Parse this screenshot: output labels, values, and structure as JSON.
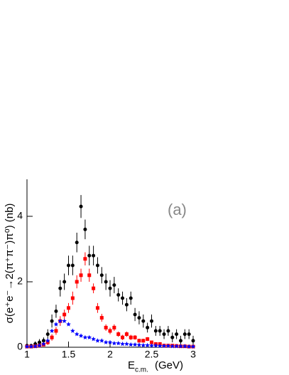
{
  "chart_data": {
    "type": "errorbar-scatter",
    "y_label": "σ(e⁺e⁻→2(π⁺π⁻)π⁰) (nb)",
    "x_label": "E",
    "x_label_sub": "c.m.",
    "x_label_unit": "(GeV)",
    "annotation": "(a)",
    "x": [
      1.0,
      1.05,
      1.1,
      1.15,
      1.2,
      1.25,
      1.3,
      1.35,
      1.4,
      1.45,
      1.5,
      1.55,
      1.6,
      1.65,
      1.7,
      1.75,
      1.8,
      1.85,
      1.9,
      1.95,
      2.0,
      2.05,
      2.1,
      2.15,
      2.2,
      2.25,
      2.3,
      2.35,
      2.4,
      2.45,
      2.5,
      2.55,
      2.6,
      2.65,
      2.7,
      2.75,
      2.8,
      2.85,
      2.9,
      2.95,
      3.0
    ],
    "series": [
      {
        "color": "#000000",
        "marker": "circle",
        "values": [
          0.05,
          0.05,
          0.1,
          0.15,
          0.2,
          0.4,
          0.8,
          1.1,
          1.8,
          2.0,
          2.5,
          2.5,
          3.2,
          4.3,
          3.6,
          2.8,
          2.8,
          2.5,
          2.2,
          2.0,
          1.8,
          1.9,
          1.6,
          1.5,
          1.3,
          1.5,
          1.0,
          0.9,
          0.8,
          0.6,
          0.8,
          0.5,
          0.5,
          0.4,
          0.5,
          0.3,
          0.4,
          0.2,
          0.4,
          0.4,
          0.2
        ],
        "errors": [
          0.05,
          0.05,
          0.08,
          0.1,
          0.1,
          0.15,
          0.2,
          0.2,
          0.25,
          0.25,
          0.3,
          0.3,
          0.3,
          0.35,
          0.3,
          0.3,
          0.3,
          0.25,
          0.25,
          0.25,
          0.25,
          0.25,
          0.2,
          0.2,
          0.2,
          0.2,
          0.2,
          0.2,
          0.2,
          0.15,
          0.2,
          0.15,
          0.15,
          0.15,
          0.15,
          0.15,
          0.15,
          0.15,
          0.15,
          0.15,
          0.15
        ]
      },
      {
        "color": "#ff0000",
        "marker": "square",
        "values": [
          0.02,
          0.02,
          0.03,
          0.05,
          0.08,
          0.15,
          0.3,
          0.5,
          0.8,
          1.0,
          1.2,
          1.5,
          2.0,
          2.2,
          2.7,
          2.2,
          1.8,
          1.2,
          0.9,
          0.6,
          0.5,
          0.6,
          0.4,
          0.3,
          0.4,
          0.3,
          0.3,
          0.2,
          0.2,
          0.25,
          0.15,
          0.1,
          0.1,
          0.05,
          0.05,
          0.05,
          0.04,
          0.03,
          0.03,
          0.02,
          0.02
        ],
        "errors": [
          0.02,
          0.02,
          0.03,
          0.04,
          0.05,
          0.08,
          0.1,
          0.12,
          0.15,
          0.15,
          0.15,
          0.2,
          0.2,
          0.2,
          0.2,
          0.2,
          0.15,
          0.15,
          0.12,
          0.1,
          0.1,
          0.1,
          0.08,
          0.08,
          0.08,
          0.08,
          0.07,
          0.06,
          0.06,
          0.06,
          0.05,
          0.05,
          0.05,
          0.04,
          0.04,
          0.04,
          0.03,
          0.03,
          0.03,
          0.03,
          0.03
        ]
      },
      {
        "color": "#0000ff",
        "marker": "star",
        "values": [
          0.02,
          0.02,
          0.03,
          0.05,
          0.1,
          0.2,
          0.5,
          0.7,
          0.8,
          0.8,
          0.7,
          0.5,
          0.4,
          0.35,
          0.3,
          0.3,
          0.25,
          0.2,
          0.2,
          0.15,
          0.15,
          0.12,
          0.12,
          0.1,
          0.1,
          0.08,
          0.08,
          0.07,
          0.06,
          0.06,
          0.05,
          0.05,
          0.04,
          0.04,
          0.04,
          0.03,
          0.03,
          0.03,
          0.03,
          0.02,
          0.02
        ]
      }
    ],
    "xlim": [
      1,
      3
    ],
    "ylim": [
      0,
      5.13
    ],
    "xticks": [
      1,
      1.5,
      2,
      2.5,
      3
    ],
    "yticks": [
      0,
      2,
      4
    ]
  }
}
